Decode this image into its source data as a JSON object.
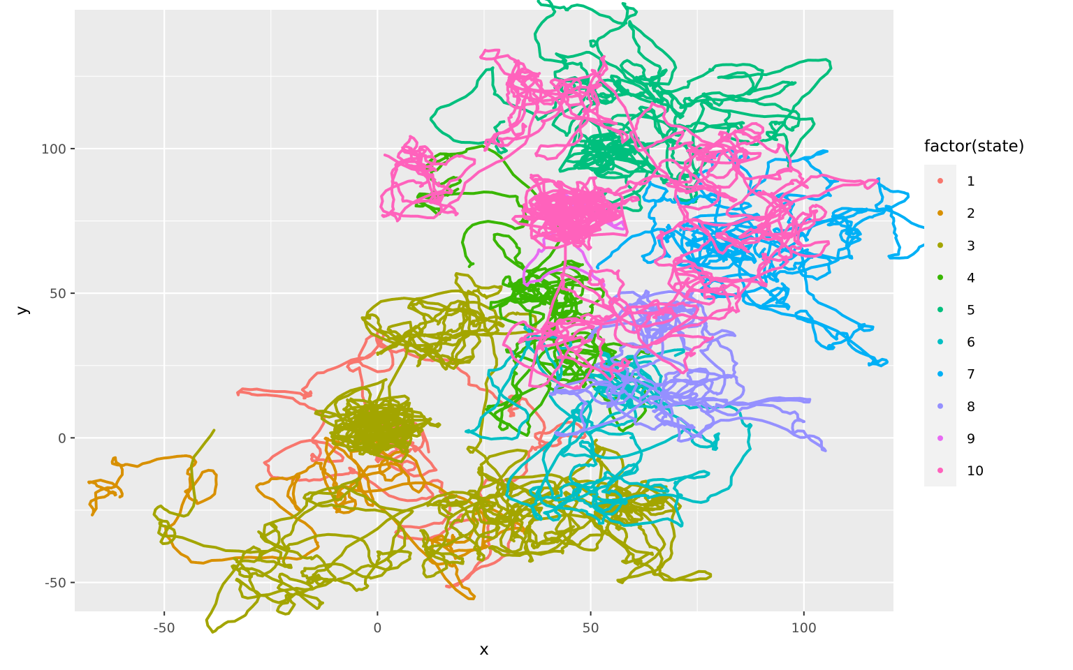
{
  "chart_data": {
    "type": "line",
    "xlabel": "x",
    "ylabel": "y",
    "xlim": [
      -71,
      121
    ],
    "ylim": [
      -60,
      148
    ],
    "x_ticks": [
      -50,
      0,
      50,
      100
    ],
    "y_ticks": [
      -50,
      0,
      50,
      100
    ],
    "x_tick_labels": [
      "-50",
      "0",
      "50",
      "100"
    ],
    "y_tick_labels": [
      "-50",
      "0",
      "50",
      "100"
    ],
    "grid": true,
    "legend": {
      "title": "factor(state)",
      "position": "right"
    },
    "series": [
      {
        "name": "1",
        "color": "#F8766D",
        "center": [
          5,
          -5
        ],
        "spread": 14,
        "steps": 600,
        "seed": 11,
        "lw": 4,
        "path_hint": [
          [
            0,
            30
          ],
          [
            -18,
            22
          ],
          [
            -20,
            0
          ],
          [
            -8,
            -20
          ],
          [
            10,
            -36
          ],
          [
            22,
            -30
          ],
          [
            34,
            -14
          ],
          [
            24,
            6
          ],
          [
            8,
            26
          ],
          [
            0,
            30
          ]
        ]
      },
      {
        "name": "2",
        "color": "#D89000",
        "center": [
          -2,
          -10
        ],
        "spread": 14,
        "steps": 500,
        "seed": 23,
        "lw": 4,
        "path_hint": [
          [
            -60,
            -20
          ],
          [
            -50,
            -22
          ],
          [
            -40,
            -26
          ],
          [
            -28,
            -26
          ],
          [
            -18,
            -20
          ],
          [
            -8,
            -14
          ],
          [
            5,
            -20
          ],
          [
            18,
            -28
          ],
          [
            22,
            -40
          ],
          [
            15,
            -48
          ]
        ]
      },
      {
        "name": "3",
        "color": "#A3A500",
        "center": [
          0,
          3
        ],
        "spread": 16,
        "steps": 3200,
        "seed": 37,
        "lw": 4,
        "path_hint": [
          [
            -38,
            3
          ],
          [
            -26,
            -50
          ],
          [
            -10,
            -40
          ],
          [
            20,
            -22
          ],
          [
            55,
            -18
          ],
          [
            60,
            -28
          ],
          [
            45,
            -28
          ],
          [
            30,
            -22
          ],
          [
            20,
            38
          ],
          [
            10,
            38
          ]
        ]
      },
      {
        "name": "4",
        "color": "#39B600",
        "center": [
          38,
          50
        ],
        "spread": 14,
        "steps": 1000,
        "seed": 41,
        "lw": 4,
        "path_hint": [
          [
            22,
            58
          ],
          [
            20,
            80
          ],
          [
            25,
            90
          ],
          [
            40,
            60
          ],
          [
            35,
            30
          ],
          [
            32,
            20
          ],
          [
            40,
            22
          ],
          [
            50,
            25
          ],
          [
            55,
            20
          ],
          [
            45,
            40
          ]
        ]
      },
      {
        "name": "5",
        "color": "#00BF7D",
        "center": [
          55,
          100
        ],
        "spread": 16,
        "steps": 1400,
        "seed": 53,
        "lw": 4,
        "path_hint": [
          [
            30,
            110
          ],
          [
            40,
            118
          ],
          [
            48,
            136
          ],
          [
            55,
            128
          ],
          [
            60,
            122
          ],
          [
            75,
            115
          ],
          [
            88,
            120
          ],
          [
            86,
            108
          ],
          [
            70,
            100
          ],
          [
            60,
            95
          ]
        ]
      },
      {
        "name": "6",
        "color": "#00BFC4",
        "center": [
          58,
          18
        ],
        "spread": 14,
        "steps": 900,
        "seed": 67,
        "lw": 4,
        "path_hint": [
          [
            32,
            30
          ],
          [
            40,
            20
          ],
          [
            48,
            12
          ],
          [
            55,
            2
          ],
          [
            52,
            -15
          ],
          [
            60,
            -10
          ],
          [
            70,
            -2
          ],
          [
            72,
            -14
          ],
          [
            62,
            -18
          ],
          [
            50,
            -12
          ]
        ]
      },
      {
        "name": "7",
        "color": "#00B0F6",
        "center": [
          80,
          65
        ],
        "spread": 16,
        "steps": 1200,
        "seed": 71,
        "lw": 4,
        "path_hint": [
          [
            52,
            58
          ],
          [
            65,
            78
          ],
          [
            75,
            88
          ],
          [
            90,
            92
          ],
          [
            98,
            72
          ],
          [
            110,
            72
          ],
          [
            112,
            62
          ],
          [
            108,
            52
          ],
          [
            95,
            58
          ],
          [
            85,
            45
          ]
        ]
      },
      {
        "name": "8",
        "color": "#9590FF",
        "center": [
          68,
          40
        ],
        "spread": 13,
        "steps": 1000,
        "seed": 83,
        "lw": 4,
        "path_hint": [
          [
            55,
            45
          ],
          [
            65,
            40
          ],
          [
            70,
            30
          ],
          [
            72,
            20
          ],
          [
            78,
            10
          ],
          [
            80,
            4
          ],
          [
            70,
            5
          ],
          [
            55,
            8
          ],
          [
            62,
            16
          ],
          [
            75,
            25
          ]
        ]
      },
      {
        "name": "9",
        "color": "#E76BF3",
        "center": [
          48,
          78
        ],
        "spread": 6,
        "steps": 80,
        "seed": 97,
        "lw": 4,
        "path_hint": [
          [
            44,
            74
          ],
          [
            48,
            80
          ],
          [
            52,
            76
          ],
          [
            48,
            72
          ]
        ]
      },
      {
        "name": "10",
        "color": "#FF62BC",
        "center": [
          45,
          78
        ],
        "spread": 18,
        "steps": 3400,
        "seed": 101,
        "lw": 4,
        "path_hint": [
          [
            2,
            98
          ],
          [
            15,
            90
          ],
          [
            35,
            118
          ],
          [
            50,
            120
          ],
          [
            75,
            95
          ],
          [
            94,
            92
          ],
          [
            92,
            72
          ],
          [
            80,
            55
          ],
          [
            60,
            40
          ],
          [
            45,
            30
          ]
        ]
      }
    ]
  }
}
